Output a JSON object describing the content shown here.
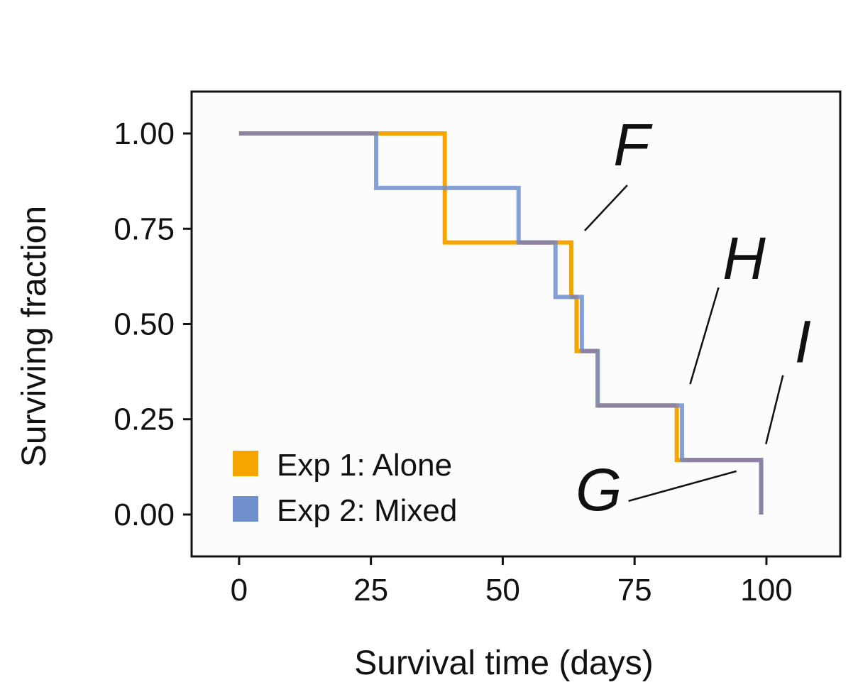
{
  "chart_data": {
    "type": "line",
    "step": true,
    "xlabel": "Survival time (days)",
    "ylabel": "Surviving fraction",
    "xlim": [
      -9,
      114
    ],
    "ylim": [
      -0.11,
      1.11
    ],
    "xticks": [
      0,
      25,
      50,
      75,
      100
    ],
    "xtick_labels": [
      "0",
      "25",
      "50",
      "75",
      "100"
    ],
    "yticks": [
      0,
      0.25,
      0.5,
      0.75,
      1.0
    ],
    "ytick_labels": [
      "0.00",
      "0.25",
      "0.50",
      "0.75",
      "1.00"
    ],
    "grid": false,
    "legend_position": "bottom-left",
    "series": [
      {
        "name": "Exp 1: Alone",
        "color": "#F5A400",
        "x": [
          0,
          39,
          63,
          64,
          68,
          83,
          99
        ],
        "y": [
          1.0,
          0.714,
          0.571,
          0.429,
          0.286,
          0.143,
          0.0
        ]
      },
      {
        "name": "Exp 2: Mixed",
        "color": "#6F8FCC",
        "x": [
          0,
          26,
          53,
          60,
          65,
          68,
          84,
          99
        ],
        "y": [
          1.0,
          0.857,
          0.714,
          0.571,
          0.429,
          0.286,
          0.143,
          0.0
        ]
      }
    ],
    "overlap_color": "#8C82A4",
    "annotations": [
      {
        "label": "F",
        "x": 65,
        "y": 0.73
      },
      {
        "label": "H",
        "x": 85,
        "y": 0.32
      },
      {
        "label": "I",
        "x": 99.5,
        "y": 0.17
      },
      {
        "label": "G",
        "x": 97,
        "y": 0.11
      }
    ]
  }
}
